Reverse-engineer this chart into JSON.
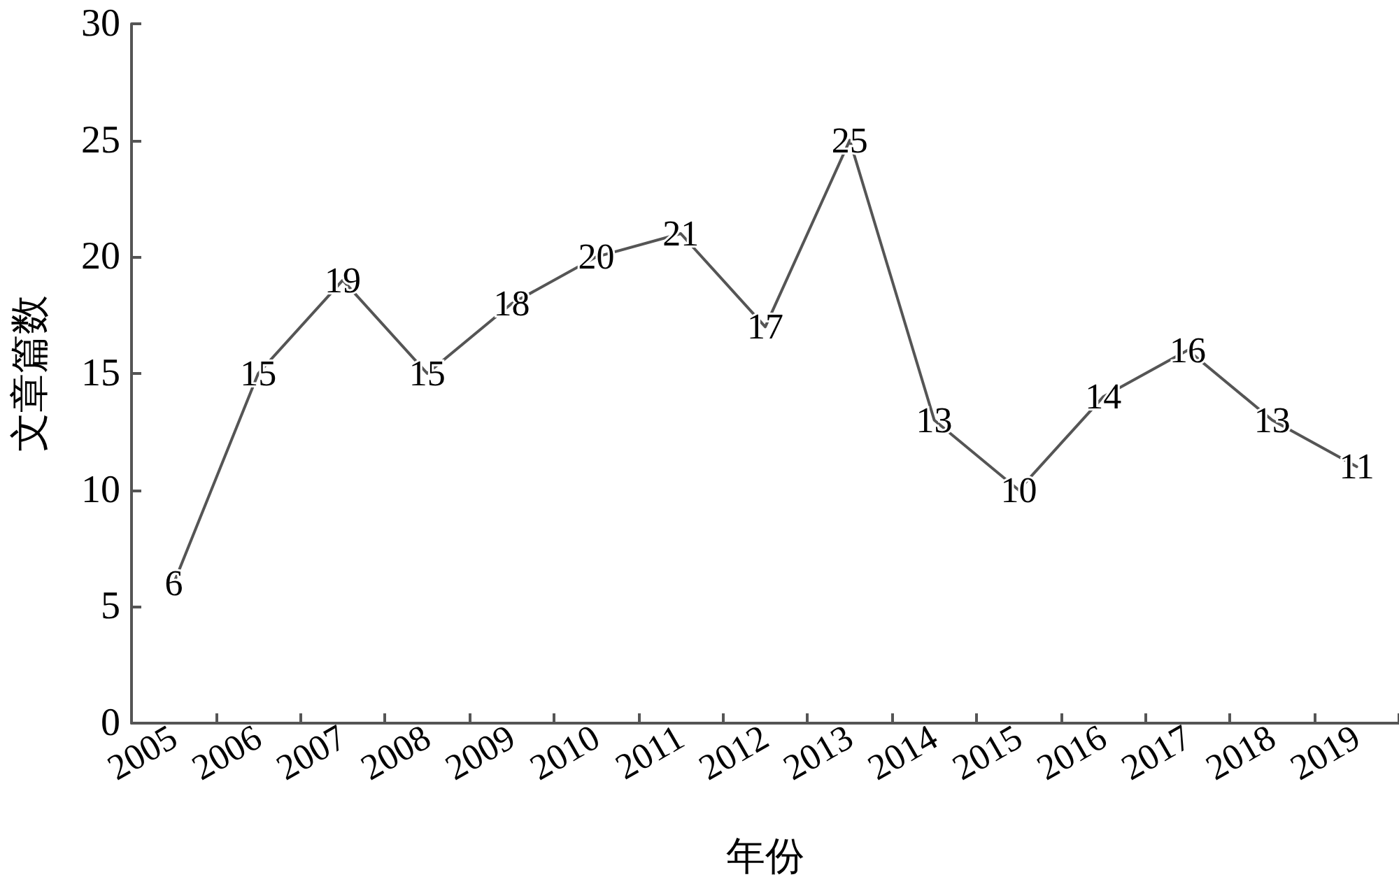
{
  "chart_data": {
    "type": "line",
    "xlabel": "年份",
    "ylabel": "文章篇数",
    "categories": [
      "2005",
      "2006",
      "2007",
      "2008",
      "2009",
      "2010",
      "2011",
      "2012",
      "2013",
      "2014",
      "2015",
      "2016",
      "2017",
      "2018",
      "2019"
    ],
    "series": [
      {
        "color": "#555555",
        "values": [
          6,
          15,
          19,
          15,
          18,
          20,
          21,
          17,
          25,
          13,
          10,
          14,
          16,
          13,
          11
        ]
      }
    ],
    "ylim": [
      0,
      30
    ],
    "yticks": [
      0,
      5,
      10,
      15,
      20,
      25,
      30
    ],
    "data_labels": true,
    "marker": "none",
    "line_style": "solid"
  }
}
